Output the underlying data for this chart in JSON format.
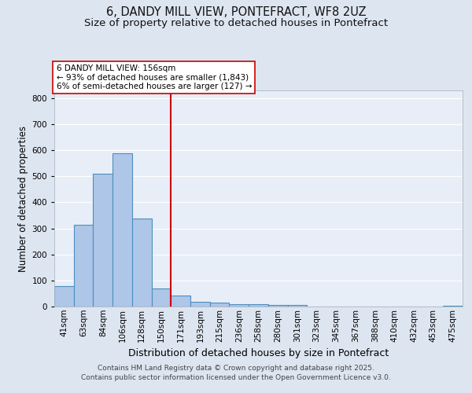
{
  "title": "6, DANDY MILL VIEW, PONTEFRACT, WF8 2UZ",
  "subtitle": "Size of property relative to detached houses in Pontefract",
  "xlabel": "Distribution of detached houses by size in Pontefract",
  "ylabel": "Number of detached properties",
  "categories": [
    "41sqm",
    "63sqm",
    "84sqm",
    "106sqm",
    "128sqm",
    "150sqm",
    "171sqm",
    "193sqm",
    "215sqm",
    "236sqm",
    "258sqm",
    "280sqm",
    "301sqm",
    "323sqm",
    "345sqm",
    "367sqm",
    "388sqm",
    "410sqm",
    "432sqm",
    "453sqm",
    "475sqm"
  ],
  "values": [
    78,
    315,
    510,
    590,
    338,
    70,
    42,
    18,
    15,
    10,
    8,
    7,
    5,
    0,
    0,
    0,
    0,
    0,
    0,
    0,
    4
  ],
  "bar_color": "#aec6e8",
  "bar_edge_color": "#4d8fbe",
  "bar_edge_width": 0.8,
  "vline_x_index": 5,
  "vline_color": "#cc0000",
  "vline_linewidth": 1.5,
  "annotation_text": "6 DANDY MILL VIEW: 156sqm\n← 93% of detached houses are smaller (1,843)\n6% of semi-detached houses are larger (127) →",
  "annotation_box_color": "#ffffff",
  "annotation_box_edge_color": "#cc0000",
  "ylim": [
    0,
    830
  ],
  "yticks": [
    0,
    100,
    200,
    300,
    400,
    500,
    600,
    700,
    800
  ],
  "bg_color": "#dde5f0",
  "plot_bg_color": "#e8eef8",
  "grid_color": "#ffffff",
  "title_fontsize": 10.5,
  "subtitle_fontsize": 9.5,
  "xlabel_fontsize": 9,
  "ylabel_fontsize": 8.5,
  "tick_fontsize": 7.5,
  "annot_fontsize": 7.5,
  "footer_line1": "Contains HM Land Registry data © Crown copyright and database right 2025.",
  "footer_line2": "Contains public sector information licensed under the Open Government Licence v3.0."
}
